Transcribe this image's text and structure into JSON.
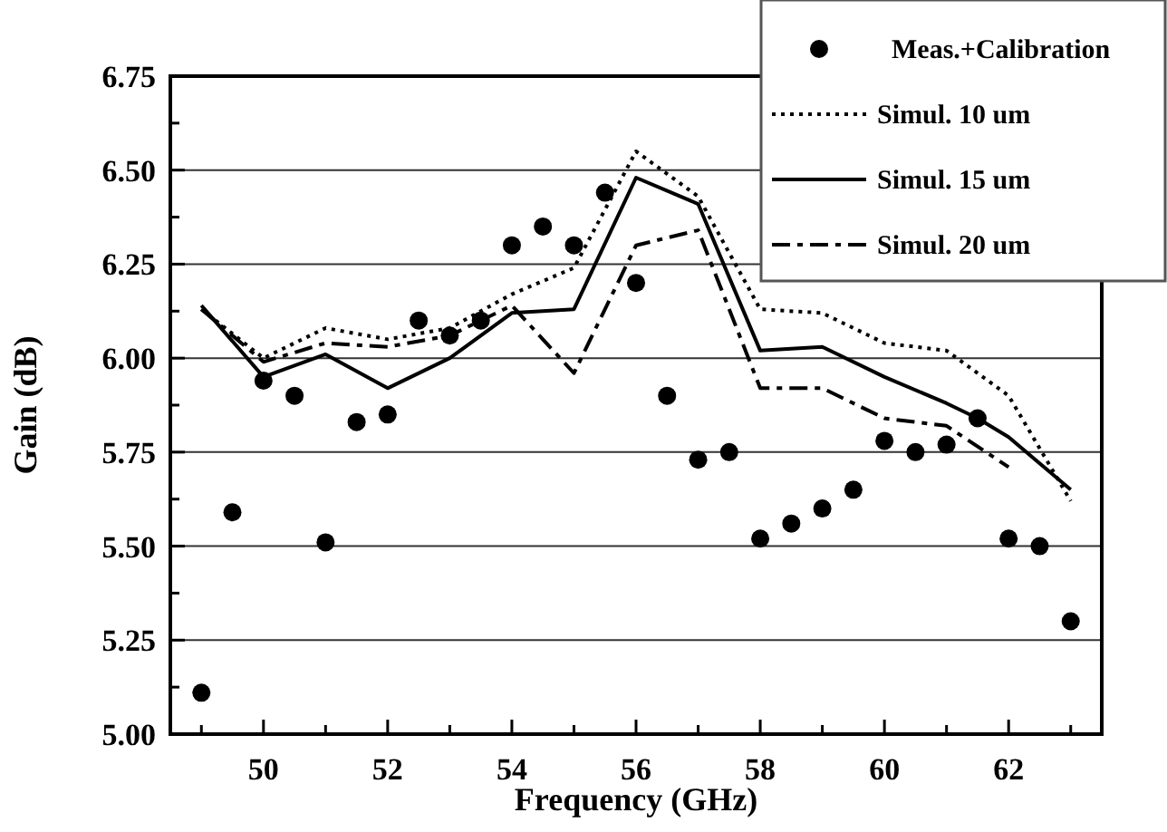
{
  "chart_data": {
    "type": "line",
    "xlabel": "Frequency (GHz)",
    "ylabel": "Gain (dB)",
    "xlim": [
      48.5,
      63.5
    ],
    "ylim": [
      5.0,
      6.75
    ],
    "xticks": [
      {
        "value": 49,
        "label": null
      },
      50,
      {
        "value": 51,
        "label": null
      },
      52,
      {
        "value": 53,
        "label": null
      },
      54,
      {
        "value": 55,
        "label": null
      },
      56,
      {
        "value": 57,
        "label": null
      },
      58,
      {
        "value": 59,
        "label": null
      },
      60,
      {
        "value": 61,
        "label": null
      },
      62,
      {
        "value": 63,
        "label": null
      }
    ],
    "yticks": [
      {
        "value": 5.0,
        "label": "5.00"
      },
      {
        "value": 5.125,
        "label": null
      },
      {
        "value": 5.25,
        "label": "5.25"
      },
      {
        "value": 5.375,
        "label": null
      },
      {
        "value": 5.5,
        "label": "5.50"
      },
      {
        "value": 5.625,
        "label": null
      },
      {
        "value": 5.75,
        "label": "5.75"
      },
      {
        "value": 5.875,
        "label": null
      },
      {
        "value": 6.0,
        "label": "6.00"
      },
      {
        "value": 6.125,
        "label": null
      },
      {
        "value": 6.25,
        "label": "6.25"
      },
      {
        "value": 6.375,
        "label": null
      },
      {
        "value": 6.5,
        "label": "6.50"
      },
      {
        "value": 6.625,
        "label": null
      },
      {
        "value": 6.75,
        "label": "6.75"
      }
    ],
    "grid": "y",
    "legend": "top right",
    "series": [
      {
        "name": "Meas.+Calibration",
        "type": "scatter",
        "marker": "circle",
        "color": "#000000",
        "x": [
          49,
          49.5,
          50,
          50.5,
          51,
          51.5,
          52,
          52.5,
          53,
          53.5,
          54,
          54.5,
          55,
          55.5,
          56,
          56.5,
          57,
          57.5,
          58,
          58.5,
          59,
          59.5,
          60,
          60.5,
          61,
          61.5,
          62,
          62.5,
          63
        ],
        "values": [
          5.11,
          5.59,
          5.94,
          5.9,
          5.51,
          5.83,
          5.85,
          6.1,
          6.06,
          6.1,
          6.3,
          6.35,
          6.3,
          6.44,
          6.2,
          5.9,
          5.73,
          5.75,
          5.52,
          5.56,
          5.6,
          5.65,
          5.78,
          5.75,
          5.77,
          5.84,
          5.52,
          5.5,
          5.3
        ]
      },
      {
        "name": "Simul. 10 um",
        "line_style": "dotted",
        "color": "#000000",
        "x": [
          49,
          50,
          51,
          52,
          53,
          54,
          55,
          56,
          57,
          58,
          59,
          60,
          61,
          62,
          63
        ],
        "values": [
          6.13,
          6.0,
          6.08,
          6.05,
          6.08,
          6.17,
          6.24,
          6.55,
          6.43,
          6.13,
          6.12,
          6.04,
          6.02,
          5.9,
          5.62
        ]
      },
      {
        "name": "Simul. 15 um",
        "line_style": "solid",
        "color": "#000000",
        "x": [
          49,
          50,
          51,
          52,
          53,
          54,
          55,
          56,
          57,
          58,
          59,
          60,
          61,
          61.5,
          62,
          63
        ],
        "values": [
          6.14,
          5.95,
          6.01,
          5.92,
          6.0,
          6.12,
          6.13,
          6.48,
          6.41,
          6.02,
          6.03,
          5.95,
          5.88,
          5.84,
          5.79,
          5.65
        ]
      },
      {
        "name": "Simul. 20 um",
        "line_style": "dashdot",
        "color": "#000000",
        "x": [
          49,
          50,
          51,
          52,
          53,
          54,
          55,
          56,
          57,
          58,
          59,
          60,
          61,
          62
        ],
        "values": [
          6.13,
          5.99,
          6.04,
          6.03,
          6.06,
          6.14,
          5.96,
          6.3,
          6.34,
          5.92,
          5.92,
          5.84,
          5.82,
          5.71
        ]
      }
    ]
  }
}
